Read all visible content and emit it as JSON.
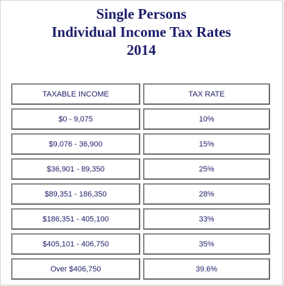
{
  "title": {
    "line1": "Single Persons",
    "line2": "Individual Income Tax Rates",
    "line3": "2014"
  },
  "table": {
    "headers": {
      "income": "TAXABLE INCOME",
      "rate": "TAX RATE"
    },
    "rows": [
      {
        "income": "$0 - 9,075",
        "rate": "10%"
      },
      {
        "income": "$9,076 - 36,900",
        "rate": "15%"
      },
      {
        "income": "$36,901 - 89,350",
        "rate": "25%"
      },
      {
        "income": "$89,351 - 186,350",
        "rate": "28%"
      },
      {
        "income": "$186,351 - 405,100",
        "rate": "33%"
      },
      {
        "income": "$405,101 - 406,750",
        "rate": "35%"
      },
      {
        "income": "Over $406,750",
        "rate": "39.6%"
      }
    ]
  },
  "colors": {
    "text": "#1c1c6a",
    "cell_border": "#8a8a8a"
  }
}
